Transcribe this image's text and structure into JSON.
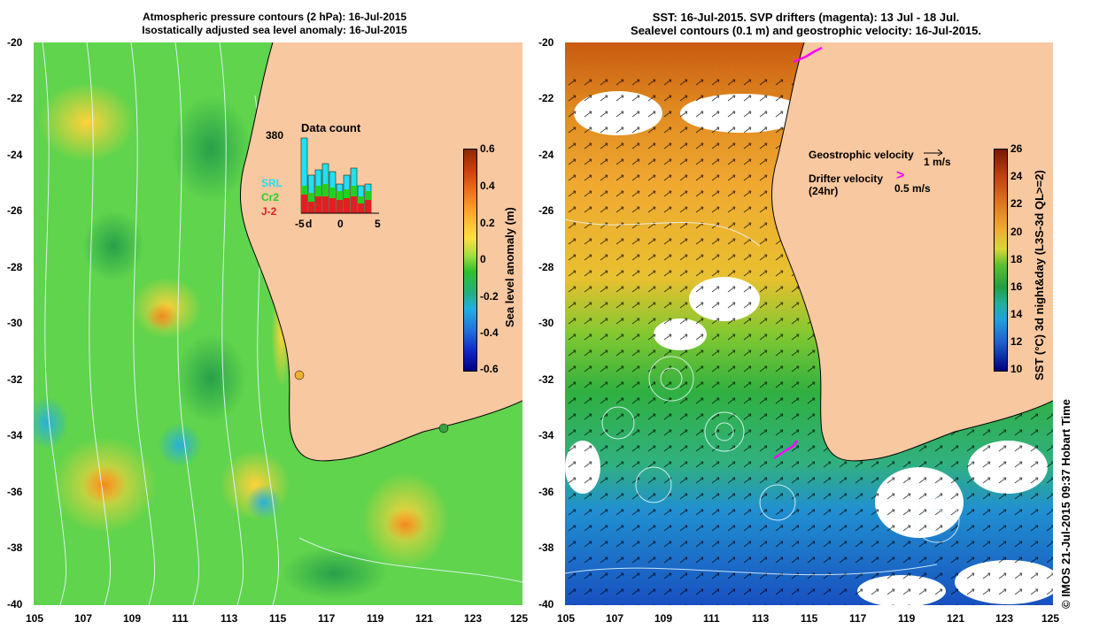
{
  "left_panel": {
    "title_line1": "Atmospheric pressure contours (2 hPa): 16-Jul-2015",
    "title_line2": "Isostatically adjusted sea level anomaly: 16-Jul-2015",
    "y_ticks": [
      "-20",
      "-22",
      "-24",
      "-26",
      "-28",
      "-30",
      "-32",
      "-34",
      "-36",
      "-38",
      "-40"
    ],
    "x_ticks": [
      "105",
      "107",
      "109",
      "111",
      "113",
      "115",
      "117",
      "119",
      "121",
      "123",
      "125"
    ],
    "colorbar": {
      "label": "Sea level anomaly (m)",
      "ticks": [
        "0.6",
        "0.4",
        "0.2",
        "0",
        "-0.2",
        "-0.4",
        "-0.6"
      ]
    },
    "data_count": {
      "title": "Data count",
      "max_label": "380",
      "legend": [
        "SRL",
        "Cr2",
        "J-2"
      ],
      "x_ticks": [
        "-5",
        "0",
        "5"
      ],
      "x_origin_label": "d"
    }
  },
  "right_panel": {
    "title_line1": "SST: 16-Jul-2015. SVP drifters (magenta): 13 Jul - 18 Jul.",
    "title_line2": "Sealevel contours (0.1 m) and geostrophic velocity: 16-Jul-2015.",
    "y_ticks": [
      "-20",
      "-22",
      "-24",
      "-26",
      "-28",
      "-30",
      "-32",
      "-34",
      "-36",
      "-38",
      "-40"
    ],
    "x_ticks": [
      "105",
      "107",
      "109",
      "111",
      "113",
      "115",
      "117",
      "119",
      "121",
      "123",
      "125"
    ],
    "legend": {
      "geo_label": "Geostrophic velocity",
      "geo_scale": "1 m/s",
      "drifter_label": "Drifter velocity",
      "drifter_sub": "(24hr)",
      "drifter_scale": "0.5 m/s"
    },
    "colorbar": {
      "label": "SST (°C) 3d night&day (L3S-3d QL>=2)",
      "ticks": [
        "26",
        "24",
        "22",
        "20",
        "18",
        "16",
        "14",
        "12",
        "10"
      ]
    }
  },
  "credit": "© IMOS 21-Jul-2015 09:37 Hobart Time",
  "colors": {
    "land": "#f8c8a0",
    "sla_green": "#55d04a",
    "sst_orange": "#f0a030",
    "sst_blue": "#1e88d0",
    "drifter": "#ff00ff"
  }
}
